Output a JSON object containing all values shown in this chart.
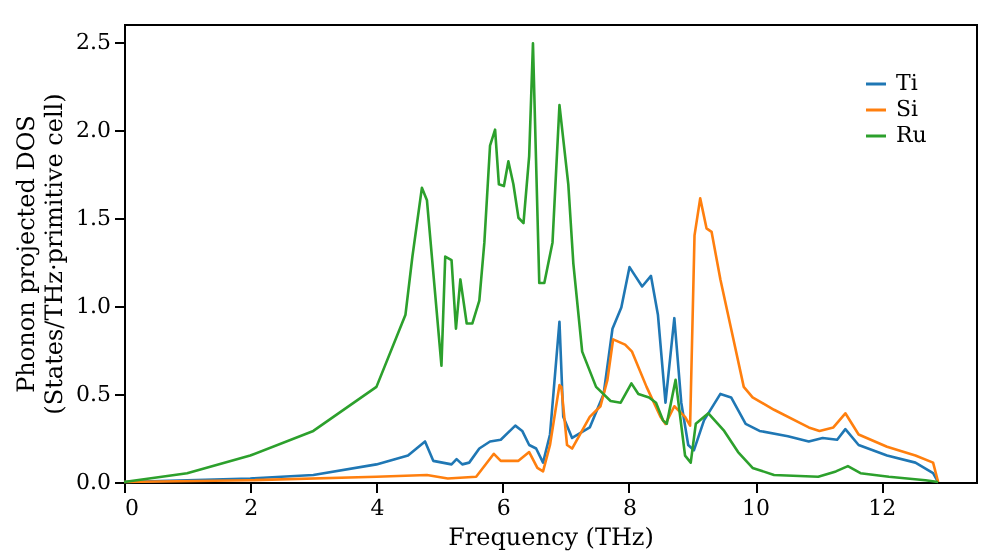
{
  "chart_data": {
    "type": "line",
    "xlabel": "Frequency (THz)",
    "ylabel": "Phonon projected DOS\n(States/THz·primitive cell)",
    "xlim": [
      0,
      13.5
    ],
    "ylim": [
      0,
      2.6
    ],
    "xticks": [
      0,
      2,
      4,
      6,
      8,
      10,
      12
    ],
    "yticks": [
      {
        "value": 0,
        "label": "0.0"
      },
      {
        "value": 0.5,
        "label": "0.5"
      },
      {
        "value": 1,
        "label": "1.0"
      },
      {
        "value": 1.5,
        "label": "1.5"
      },
      {
        "value": 2,
        "label": "2.0"
      },
      {
        "value": 2.5,
        "label": "2.5"
      }
    ],
    "grid": false,
    "legend": "top right",
    "marker": "none",
    "line_style": "solid",
    "series": [
      {
        "name": "Ti",
        "color": "#1f77b4",
        "x": [
          0,
          1,
          2,
          3,
          4,
          4.5,
          4.77,
          4.9,
          5.19,
          5.27,
          5.36,
          5.47,
          5.63,
          5.8,
          5.97,
          6.2,
          6.31,
          6.42,
          6.53,
          6.64,
          6.75,
          6.9,
          6.96,
          7.1,
          7.38,
          7.6,
          7.74,
          7.88,
          8.01,
          8.1,
          8.21,
          8.35,
          8.46,
          8.58,
          8.72,
          8.83,
          8.94,
          9.03,
          9.19,
          9.45,
          9.62,
          9.85,
          10.07,
          10.52,
          10.85,
          11.07,
          11.3,
          11.43,
          11.64,
          12.09,
          12.54,
          12.82,
          12.9
        ],
        "values": [
          0,
          0.01,
          0.02,
          0.04,
          0.1,
          0.15,
          0.23,
          0.12,
          0.1,
          0.13,
          0.1,
          0.11,
          0.19,
          0.23,
          0.24,
          0.32,
          0.29,
          0.21,
          0.19,
          0.11,
          0.27,
          0.91,
          0.37,
          0.25,
          0.31,
          0.5,
          0.87,
          0.99,
          1.22,
          1.17,
          1.11,
          1.17,
          0.95,
          0.45,
          0.93,
          0.45,
          0.21,
          0.18,
          0.35,
          0.5,
          0.48,
          0.33,
          0.29,
          0.26,
          0.23,
          0.25,
          0.24,
          0.3,
          0.21,
          0.15,
          0.11,
          0.05,
          0
        ]
      },
      {
        "name": "Si",
        "color": "#ff7f0e",
        "x": [
          0,
          2,
          4,
          4.8,
          5.13,
          5.58,
          5.86,
          5.97,
          6.25,
          6.42,
          6.55,
          6.64,
          6.75,
          6.9,
          6.93,
          7.02,
          7.1,
          7.38,
          7.55,
          7.66,
          7.75,
          7.94,
          8.05,
          8.28,
          8.5,
          8.58,
          8.72,
          8.89,
          8.97,
          9.04,
          9.13,
          9.23,
          9.31,
          9.45,
          9.62,
          9.82,
          9.96,
          10.3,
          10.74,
          10.85,
          11.02,
          11.24,
          11.43,
          11.64,
          12.09,
          12.54,
          12.82,
          12.9
        ],
        "values": [
          0,
          0.01,
          0.03,
          0.04,
          0.02,
          0.03,
          0.16,
          0.12,
          0.12,
          0.17,
          0.08,
          0.06,
          0.21,
          0.55,
          0.54,
          0.21,
          0.19,
          0.37,
          0.43,
          0.58,
          0.81,
          0.78,
          0.74,
          0.54,
          0.37,
          0.33,
          0.43,
          0.37,
          0.32,
          1.4,
          1.61,
          1.44,
          1.42,
          1.15,
          0.87,
          0.54,
          0.48,
          0.41,
          0.33,
          0.31,
          0.29,
          0.31,
          0.39,
          0.27,
          0.2,
          0.15,
          0.11,
          0
        ]
      },
      {
        "name": "Ru",
        "color": "#2ca02c",
        "x": [
          0,
          1,
          2,
          3,
          4,
          4.46,
          4.57,
          4.72,
          4.8,
          5.03,
          5.09,
          5.19,
          5.26,
          5.33,
          5.43,
          5.52,
          5.63,
          5.71,
          5.8,
          5.88,
          5.94,
          6.02,
          6.09,
          6.17,
          6.25,
          6.33,
          6.42,
          6.48,
          6.58,
          6.66,
          6.79,
          6.9,
          7.04,
          7.12,
          7.26,
          7.48,
          7.71,
          7.87,
          8.04,
          8.15,
          8.32,
          8.43,
          8.54,
          8.6,
          8.74,
          8.89,
          8.98,
          9.06,
          9.26,
          9.51,
          9.73,
          9.96,
          10.3,
          11.0,
          11.28,
          11.47,
          11.67,
          12.12,
          12.7,
          12.9
        ],
        "values": [
          0,
          0.05,
          0.15,
          0.29,
          0.54,
          0.95,
          1.28,
          1.67,
          1.6,
          0.66,
          1.28,
          1.26,
          0.87,
          1.15,
          0.9,
          0.9,
          1.03,
          1.36,
          1.91,
          2.0,
          1.69,
          1.68,
          1.82,
          1.69,
          1.5,
          1.47,
          1.85,
          2.49,
          1.13,
          1.13,
          1.36,
          2.14,
          1.69,
          1.24,
          0.74,
          0.54,
          0.46,
          0.45,
          0.56,
          0.5,
          0.48,
          0.45,
          0.35,
          0.33,
          0.58,
          0.15,
          0.11,
          0.33,
          0.39,
          0.29,
          0.17,
          0.08,
          0.04,
          0.03,
          0.06,
          0.09,
          0.05,
          0.03,
          0.01,
          0
        ]
      }
    ]
  }
}
